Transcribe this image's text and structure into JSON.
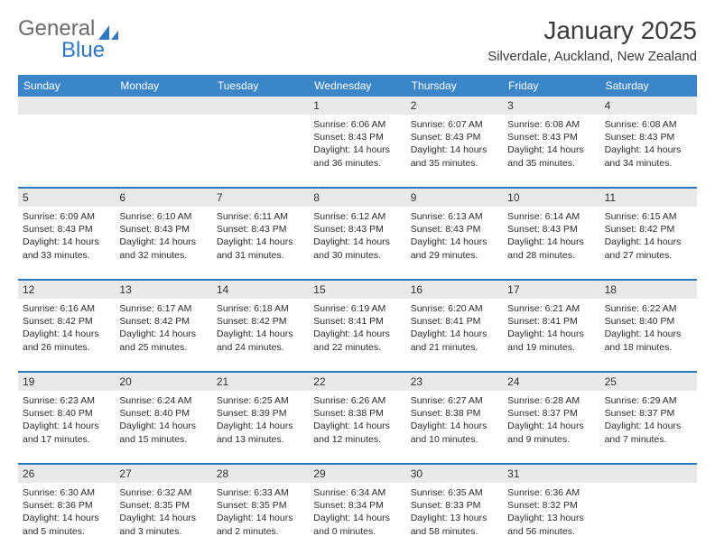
{
  "logo": {
    "text1": "General",
    "text2": "Blue",
    "accent": "#2f78bf",
    "gray": "#6b6b6b"
  },
  "title": "January 2025",
  "location": "Silverdale, Auckland, New Zealand",
  "colors": {
    "headerBg": "#3b86c8",
    "headerFg": "#ffffff",
    "dayBg": "#e9e9e9",
    "rule": "#2f78bf",
    "text": "#2b2b2b"
  },
  "dayNames": [
    "Sunday",
    "Monday",
    "Tuesday",
    "Wednesday",
    "Thursday",
    "Friday",
    "Saturday"
  ],
  "type": "table",
  "weeks": [
    [
      null,
      null,
      null,
      {
        "d": "1",
        "sr": "Sunrise: 6:06 AM",
        "ss": "Sunset: 8:43 PM",
        "dl": "Daylight: 14 hours and 36 minutes."
      },
      {
        "d": "2",
        "sr": "Sunrise: 6:07 AM",
        "ss": "Sunset: 8:43 PM",
        "dl": "Daylight: 14 hours and 35 minutes."
      },
      {
        "d": "3",
        "sr": "Sunrise: 6:08 AM",
        "ss": "Sunset: 8:43 PM",
        "dl": "Daylight: 14 hours and 35 minutes."
      },
      {
        "d": "4",
        "sr": "Sunrise: 6:08 AM",
        "ss": "Sunset: 8:43 PM",
        "dl": "Daylight: 14 hours and 34 minutes."
      }
    ],
    [
      {
        "d": "5",
        "sr": "Sunrise: 6:09 AM",
        "ss": "Sunset: 8:43 PM",
        "dl": "Daylight: 14 hours and 33 minutes."
      },
      {
        "d": "6",
        "sr": "Sunrise: 6:10 AM",
        "ss": "Sunset: 8:43 PM",
        "dl": "Daylight: 14 hours and 32 minutes."
      },
      {
        "d": "7",
        "sr": "Sunrise: 6:11 AM",
        "ss": "Sunset: 8:43 PM",
        "dl": "Daylight: 14 hours and 31 minutes."
      },
      {
        "d": "8",
        "sr": "Sunrise: 6:12 AM",
        "ss": "Sunset: 8:43 PM",
        "dl": "Daylight: 14 hours and 30 minutes."
      },
      {
        "d": "9",
        "sr": "Sunrise: 6:13 AM",
        "ss": "Sunset: 8:43 PM",
        "dl": "Daylight: 14 hours and 29 minutes."
      },
      {
        "d": "10",
        "sr": "Sunrise: 6:14 AM",
        "ss": "Sunset: 8:43 PM",
        "dl": "Daylight: 14 hours and 28 minutes."
      },
      {
        "d": "11",
        "sr": "Sunrise: 6:15 AM",
        "ss": "Sunset: 8:42 PM",
        "dl": "Daylight: 14 hours and 27 minutes."
      }
    ],
    [
      {
        "d": "12",
        "sr": "Sunrise: 6:16 AM",
        "ss": "Sunset: 8:42 PM",
        "dl": "Daylight: 14 hours and 26 minutes."
      },
      {
        "d": "13",
        "sr": "Sunrise: 6:17 AM",
        "ss": "Sunset: 8:42 PM",
        "dl": "Daylight: 14 hours and 25 minutes."
      },
      {
        "d": "14",
        "sr": "Sunrise: 6:18 AM",
        "ss": "Sunset: 8:42 PM",
        "dl": "Daylight: 14 hours and 24 minutes."
      },
      {
        "d": "15",
        "sr": "Sunrise: 6:19 AM",
        "ss": "Sunset: 8:41 PM",
        "dl": "Daylight: 14 hours and 22 minutes."
      },
      {
        "d": "16",
        "sr": "Sunrise: 6:20 AM",
        "ss": "Sunset: 8:41 PM",
        "dl": "Daylight: 14 hours and 21 minutes."
      },
      {
        "d": "17",
        "sr": "Sunrise: 6:21 AM",
        "ss": "Sunset: 8:41 PM",
        "dl": "Daylight: 14 hours and 19 minutes."
      },
      {
        "d": "18",
        "sr": "Sunrise: 6:22 AM",
        "ss": "Sunset: 8:40 PM",
        "dl": "Daylight: 14 hours and 18 minutes."
      }
    ],
    [
      {
        "d": "19",
        "sr": "Sunrise: 6:23 AM",
        "ss": "Sunset: 8:40 PM",
        "dl": "Daylight: 14 hours and 17 minutes."
      },
      {
        "d": "20",
        "sr": "Sunrise: 6:24 AM",
        "ss": "Sunset: 8:40 PM",
        "dl": "Daylight: 14 hours and 15 minutes."
      },
      {
        "d": "21",
        "sr": "Sunrise: 6:25 AM",
        "ss": "Sunset: 8:39 PM",
        "dl": "Daylight: 14 hours and 13 minutes."
      },
      {
        "d": "22",
        "sr": "Sunrise: 6:26 AM",
        "ss": "Sunset: 8:38 PM",
        "dl": "Daylight: 14 hours and 12 minutes."
      },
      {
        "d": "23",
        "sr": "Sunrise: 6:27 AM",
        "ss": "Sunset: 8:38 PM",
        "dl": "Daylight: 14 hours and 10 minutes."
      },
      {
        "d": "24",
        "sr": "Sunrise: 6:28 AM",
        "ss": "Sunset: 8:37 PM",
        "dl": "Daylight: 14 hours and 9 minutes."
      },
      {
        "d": "25",
        "sr": "Sunrise: 6:29 AM",
        "ss": "Sunset: 8:37 PM",
        "dl": "Daylight: 14 hours and 7 minutes."
      }
    ],
    [
      {
        "d": "26",
        "sr": "Sunrise: 6:30 AM",
        "ss": "Sunset: 8:36 PM",
        "dl": "Daylight: 14 hours and 5 minutes."
      },
      {
        "d": "27",
        "sr": "Sunrise: 6:32 AM",
        "ss": "Sunset: 8:35 PM",
        "dl": "Daylight: 14 hours and 3 minutes."
      },
      {
        "d": "28",
        "sr": "Sunrise: 6:33 AM",
        "ss": "Sunset: 8:35 PM",
        "dl": "Daylight: 14 hours and 2 minutes."
      },
      {
        "d": "29",
        "sr": "Sunrise: 6:34 AM",
        "ss": "Sunset: 8:34 PM",
        "dl": "Daylight: 14 hours and 0 minutes."
      },
      {
        "d": "30",
        "sr": "Sunrise: 6:35 AM",
        "ss": "Sunset: 8:33 PM",
        "dl": "Daylight: 13 hours and 58 minutes."
      },
      {
        "d": "31",
        "sr": "Sunrise: 6:36 AM",
        "ss": "Sunset: 8:32 PM",
        "dl": "Daylight: 13 hours and 56 minutes."
      },
      null
    ]
  ]
}
